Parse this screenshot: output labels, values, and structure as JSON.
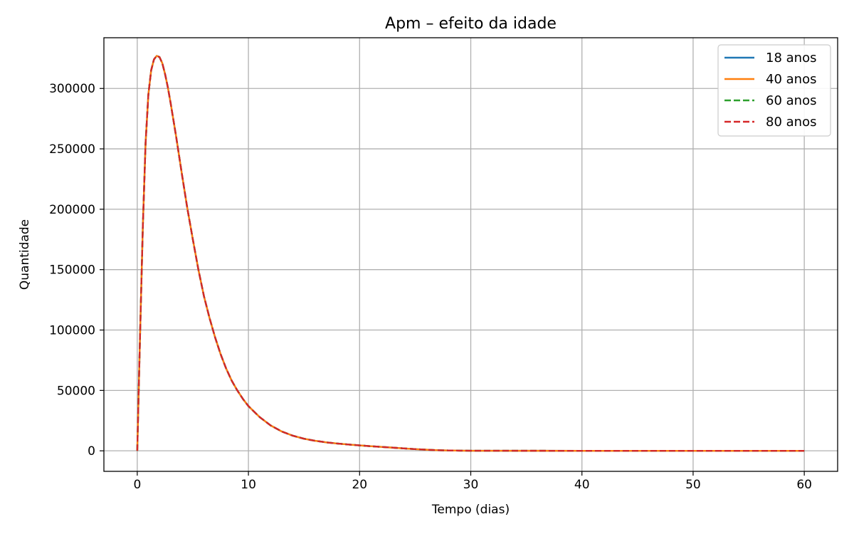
{
  "chart_data": {
    "type": "line",
    "title": "Apm – efeito da idade",
    "xlabel": "Tempo (dias)",
    "ylabel": "Quantidade",
    "xlim": [
      -3,
      63
    ],
    "ylim": [
      -17000,
      342000
    ],
    "xticks": [
      0,
      10,
      20,
      30,
      40,
      50,
      60
    ],
    "yticks": [
      0,
      50000,
      100000,
      150000,
      200000,
      250000,
      300000
    ],
    "xtick_labels": [
      "0",
      "10",
      "20",
      "30",
      "40",
      "50",
      "60"
    ],
    "ytick_labels": [
      "0",
      "50000",
      "100000",
      "150000",
      "200000",
      "250000",
      "300000"
    ],
    "grid": true,
    "legend_position": "top-right",
    "x": [
      0,
      0.25,
      0.5,
      0.75,
      1,
      1.25,
      1.5,
      1.75,
      2,
      2.25,
      2.5,
      2.75,
      3,
      3.5,
      4,
      4.5,
      5,
      5.5,
      6,
      6.5,
      7,
      7.5,
      8,
      8.5,
      9,
      9.5,
      10,
      11,
      12,
      13,
      14,
      15,
      16,
      17,
      18,
      19,
      20,
      21,
      22,
      23,
      24,
      25,
      26,
      27,
      28,
      29,
      30,
      35,
      40,
      45,
      50,
      55,
      60
    ],
    "series": [
      {
        "name": "18 anos",
        "color": "#1f77b4",
        "dash": "solid",
        "values": [
          0,
          95000,
          185000,
          255000,
          295000,
          315000,
          324000,
          327000,
          326000,
          321000,
          312000,
          301000,
          288000,
          260000,
          230000,
          201000,
          175000,
          150000,
          128000,
          110000,
          94000,
          80000,
          68000,
          58000,
          50000,
          43000,
          37000,
          28000,
          21000,
          16000,
          12500,
          10000,
          8300,
          7000,
          6000,
          5200,
          4500,
          3800,
          3200,
          2600,
          2000,
          1400,
          900,
          500,
          300,
          150,
          80,
          20,
          5,
          2,
          1,
          0,
          0
        ]
      },
      {
        "name": "40 anos",
        "color": "#ff7f0e",
        "dash": "solid",
        "values": [
          0,
          95000,
          185000,
          255000,
          295000,
          315000,
          324000,
          327000,
          326000,
          321000,
          312000,
          301000,
          288000,
          260000,
          230000,
          201000,
          175000,
          150000,
          128000,
          110000,
          94000,
          80000,
          68000,
          58000,
          50000,
          43000,
          37000,
          28000,
          21000,
          16000,
          12500,
          10000,
          8300,
          7000,
          6000,
          5200,
          4500,
          3800,
          3200,
          2600,
          2000,
          1400,
          900,
          500,
          300,
          150,
          80,
          20,
          5,
          2,
          1,
          0,
          0
        ]
      },
      {
        "name": "60 anos",
        "color": "#2ca02c",
        "dash": "dashed",
        "values": [
          0,
          95000,
          185000,
          255000,
          295000,
          315000,
          324000,
          327000,
          326000,
          321000,
          312000,
          301000,
          288000,
          260000,
          230000,
          201000,
          175000,
          150000,
          128000,
          110000,
          94000,
          80000,
          68000,
          58000,
          50000,
          43000,
          37000,
          28000,
          21000,
          16000,
          12500,
          10000,
          8300,
          7000,
          6000,
          5200,
          4500,
          3800,
          3200,
          2600,
          2000,
          1400,
          900,
          500,
          300,
          150,
          80,
          20,
          5,
          2,
          1,
          0,
          0
        ]
      },
      {
        "name": "80 anos",
        "color": "#d62728",
        "dash": "dashed",
        "values": [
          0,
          95000,
          185000,
          255000,
          295000,
          315000,
          324000,
          327000,
          326000,
          321000,
          312000,
          301000,
          288000,
          260000,
          230000,
          201000,
          175000,
          150000,
          128000,
          110000,
          94000,
          80000,
          68000,
          58000,
          50000,
          43000,
          37000,
          28000,
          21000,
          16000,
          12500,
          10000,
          8300,
          7000,
          6000,
          5200,
          4500,
          3800,
          3200,
          2600,
          2000,
          1400,
          900,
          500,
          300,
          150,
          80,
          20,
          5,
          2,
          1,
          0,
          0
        ]
      }
    ]
  }
}
